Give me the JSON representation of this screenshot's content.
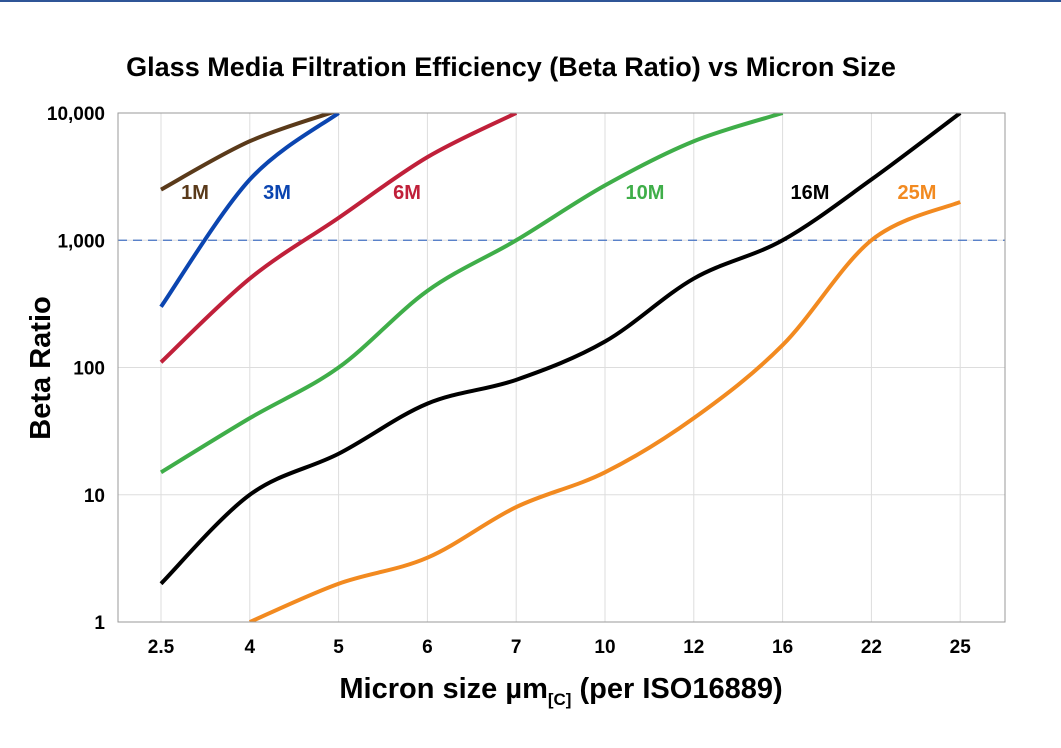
{
  "chart_data": {
    "type": "line",
    "title": "Glass Media Filtration Efficiency (Beta Ratio) vs Micron Size",
    "xlabel_main": "Micron size µm",
    "xlabel_sub": "[C]",
    "xlabel_tail": " (per ISO16889)",
    "ylabel": "Beta Ratio",
    "x_scale": "categorical",
    "y_scale": "log",
    "ylim": [
      1,
      10000
    ],
    "categories": [
      "2.5",
      "4",
      "5",
      "6",
      "7",
      "10",
      "12",
      "16",
      "22",
      "25"
    ],
    "y_ticks": [
      1,
      10,
      100,
      1000,
      10000
    ],
    "y_tick_labels": [
      "1",
      "10",
      "100",
      "1,000",
      "10,000"
    ],
    "grid": true,
    "reference_line": {
      "y": 1000,
      "style": "dashed",
      "color": "#4472c4"
    },
    "series": [
      {
        "name": "1M",
        "color": "#5a3a1a",
        "values": [
          2500,
          6000,
          10500,
          null,
          null,
          null,
          null,
          null,
          null,
          null
        ]
      },
      {
        "name": "3M",
        "color": "#0b45b0",
        "values": [
          300,
          3000,
          10000,
          null,
          null,
          null,
          null,
          null,
          null,
          null
        ]
      },
      {
        "name": "6M",
        "color": "#c0203a",
        "values": [
          110,
          500,
          1500,
          4500,
          10000,
          null,
          null,
          null,
          null,
          null
        ]
      },
      {
        "name": "10M",
        "color": "#3fae49",
        "values": [
          15,
          40,
          100,
          400,
          1000,
          2700,
          6000,
          10000,
          null,
          null
        ]
      },
      {
        "name": "16M",
        "color": "#000000",
        "values": [
          2,
          10,
          21,
          52,
          80,
          160,
          500,
          1000,
          3000,
          10000
        ]
      },
      {
        "name": "25M",
        "color": "#f28a20",
        "values": [
          null,
          1,
          2,
          3.2,
          8,
          15,
          40,
          150,
          1000,
          2000
        ]
      }
    ]
  }
}
